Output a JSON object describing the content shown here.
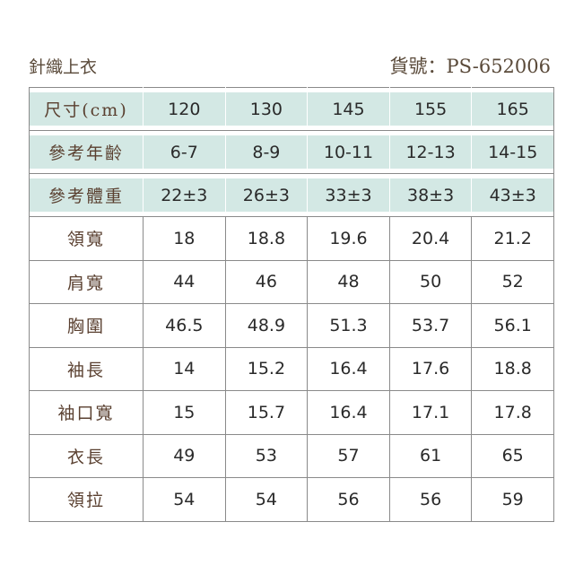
{
  "title": "針織上衣",
  "item_code": "貨號：PS-652006",
  "colors": {
    "header_fill": "#d3e8e4",
    "border": "#8a8a8a"
  },
  "header_rows": [
    {
      "label": "尺寸(cm)",
      "values": [
        "120",
        "130",
        "145",
        "155",
        "165"
      ]
    },
    {
      "label": "參考年齡",
      "values": [
        "6-7",
        "8-9",
        "10-11",
        "12-13",
        "14-15"
      ]
    },
    {
      "label": "參考體重",
      "values": [
        "22±3",
        "26±3",
        "33±3",
        "38±3",
        "43±3"
      ]
    }
  ],
  "rows": [
    {
      "label": "領寬",
      "values": [
        "18",
        "18.8",
        "19.6",
        "20.4",
        "21.2"
      ]
    },
    {
      "label": "肩寬",
      "values": [
        "44",
        "46",
        "48",
        "50",
        "52"
      ]
    },
    {
      "label": "胸圍",
      "values": [
        "46.5",
        "48.9",
        "51.3",
        "53.7",
        "56.1"
      ]
    },
    {
      "label": "袖長",
      "values": [
        "14",
        "15.2",
        "16.4",
        "17.6",
        "18.8"
      ]
    },
    {
      "label": "袖口寬",
      "values": [
        "15",
        "15.7",
        "16.4",
        "17.1",
        "17.8"
      ]
    },
    {
      "label": "衣長",
      "values": [
        "49",
        "53",
        "57",
        "61",
        "65"
      ]
    },
    {
      "label": "領拉",
      "values": [
        "54",
        "54",
        "56",
        "56",
        "59"
      ]
    }
  ]
}
